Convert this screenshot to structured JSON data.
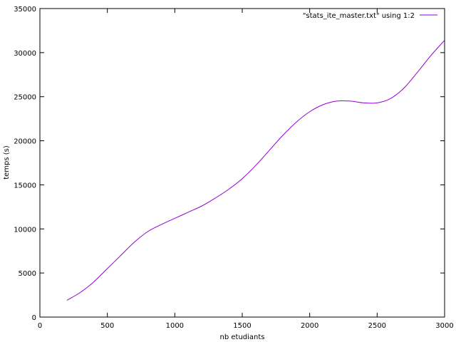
{
  "chart_data": {
    "type": "line",
    "title": "",
    "xlabel": "nb etudiants",
    "ylabel": "temps (s)",
    "xlim": [
      0,
      3000
    ],
    "ylim": [
      0,
      35000
    ],
    "x_ticks": [
      0,
      500,
      1000,
      1500,
      2000,
      2500,
      3000
    ],
    "y_ticks": [
      0,
      5000,
      10000,
      15000,
      20000,
      25000,
      30000,
      35000
    ],
    "grid": false,
    "legend_position": "top-right",
    "series": [
      {
        "name": "\"stats_ite_master.txt\" using 1:2",
        "color": "#9400d3",
        "x": [
          200,
          300,
          400,
          500,
          600,
          700,
          800,
          900,
          1000,
          1100,
          1200,
          1300,
          1400,
          1500,
          1600,
          1700,
          1800,
          1900,
          2000,
          2100,
          2200,
          2300,
          2400,
          2500,
          2600,
          2700,
          2800,
          2900,
          3000
        ],
        "y": [
          1900,
          2800,
          4000,
          5500,
          7000,
          8500,
          9700,
          10500,
          11200,
          11900,
          12600,
          13500,
          14500,
          15700,
          17200,
          18900,
          20600,
          22100,
          23300,
          24100,
          24500,
          24500,
          24300,
          24300,
          24800,
          26000,
          27800,
          29700,
          31400
        ]
      }
    ]
  }
}
